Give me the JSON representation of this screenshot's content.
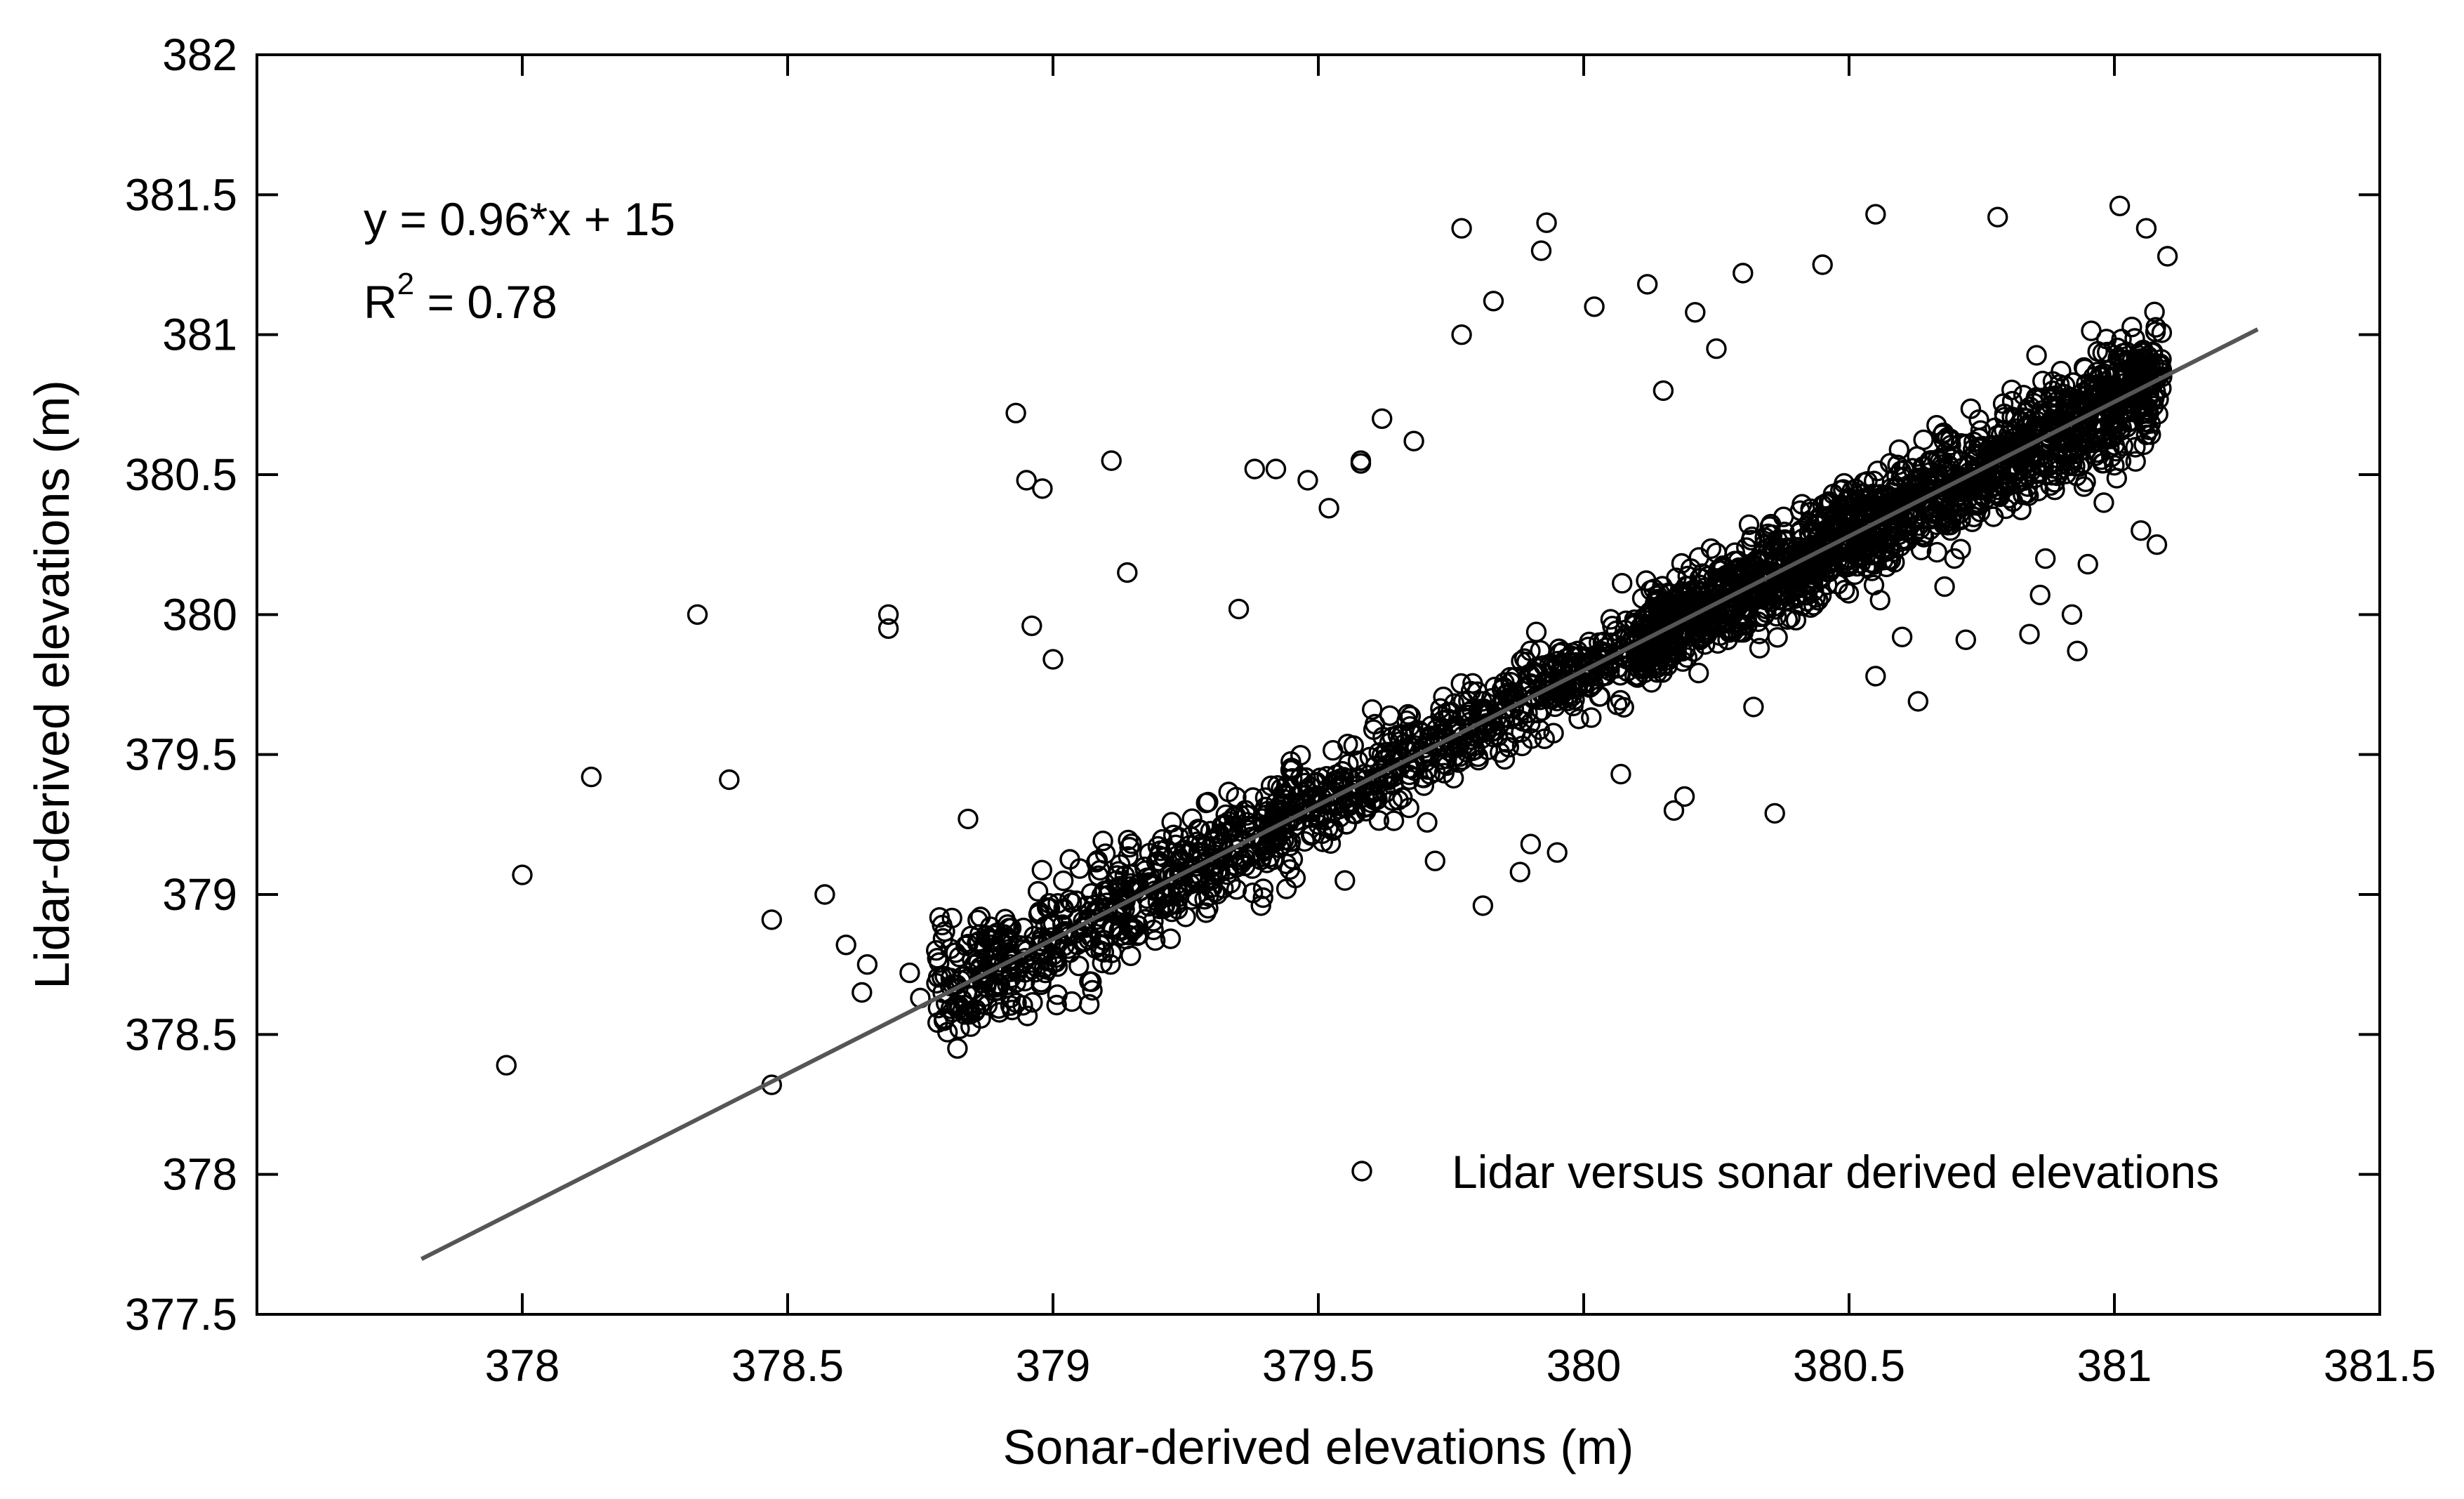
{
  "chart_data": {
    "type": "scatter",
    "title": "",
    "xlabel": "Sonar-derived elevations (m)",
    "ylabel": "Lidar-derived elevations (m)",
    "xlim": [
      377.5,
      381.5
    ],
    "ylim": [
      377.5,
      382
    ],
    "x_ticks": [
      "378",
      "378.5",
      "379",
      "379.5",
      "380",
      "380.5",
      "381",
      "381.5"
    ],
    "y_ticks": [
      "377.5",
      "378",
      "378.5",
      "379",
      "379.5",
      "380",
      "380.5",
      "381",
      "381.5",
      "382"
    ],
    "grid": false,
    "legend": {
      "position": "bottom-right",
      "label": "Lidar versus sonar derived elevations"
    },
    "annotation": {
      "equation": "y = 0.96*x + 15",
      "r2_label": "R",
      "r2_exp": "2",
      "r2_value": " = 0.78"
    },
    "fit_line": {
      "slope": 0.96,
      "intercept": 15,
      "x_range": [
        377.81,
        381.27
      ],
      "color": "#555555"
    },
    "marker_color": "#000000",
    "series": [
      {
        "name": "Lidar versus sonar derived elevations",
        "x": [
          377.97,
          378.0,
          378.13,
          378.33,
          378.39,
          378.47,
          378.47,
          378.57,
          378.61,
          378.64,
          378.65,
          378.69,
          378.69,
          378.73,
          378.75,
          378.78,
          378.81,
          378.82,
          378.84,
          378.92,
          378.93,
          378.95,
          378.96,
          378.98,
          379.0,
          379.11,
          379.14,
          379.42,
          379.44,
          379.58,
          379.58,
          379.77,
          379.77,
          379.81,
          379.83,
          379.93,
          379.92,
          379.95,
          380.07,
          380.17,
          380.19,
          380.32,
          380.36,
          380.55,
          380.63,
          380.72,
          380.84,
          380.86,
          380.93,
          381.01,
          381.06,
          380.87,
          380.95,
          381.08,
          380.55,
          380.6,
          380.78,
          380.45,
          380.4,
          380.12,
          380.3,
          380.21,
          380.15,
          379.62,
          379.55,
          379.3,
          379.25,
          379.38,
          379.68,
          379.72,
          379.88,
          379.9,
          380.02,
          380.25,
          381.05,
          380.98,
          381.1,
          380.68,
          380.92,
          379.02,
          379.12,
          379.35,
          379.48,
          379.52
        ],
        "y": [
          378.39,
          379.07,
          379.42,
          380.0,
          379.41,
          378.91,
          378.32,
          379.0,
          378.82,
          378.65,
          378.75,
          380.0,
          379.95,
          378.72,
          378.63,
          378.8,
          378.58,
          378.45,
          379.27,
          378.75,
          380.72,
          380.48,
          379.96,
          380.45,
          379.84,
          380.55,
          380.15,
          380.52,
          379.02,
          380.54,
          380.55,
          381.38,
          381.0,
          378.96,
          381.12,
          381.4,
          381.3,
          379.15,
          379.43,
          379.3,
          379.35,
          379.67,
          379.29,
          381.43,
          379.69,
          379.91,
          379.93,
          380.07,
          379.87,
          381.46,
          381.38,
          380.2,
          380.18,
          380.25,
          379.78,
          379.92,
          381.42,
          381.25,
          379.98,
          381.18,
          381.22,
          381.08,
          380.8,
          380.7,
          379.05,
          379.1,
          378.92,
          380.52,
          380.62,
          379.12,
          379.08,
          379.18,
          381.1,
          380.95,
          380.3,
          380.4,
          381.28,
          380.1,
          380.0,
          378.95,
          379.05,
          380.02,
          380.48,
          380.38
        ]
      }
    ]
  }
}
